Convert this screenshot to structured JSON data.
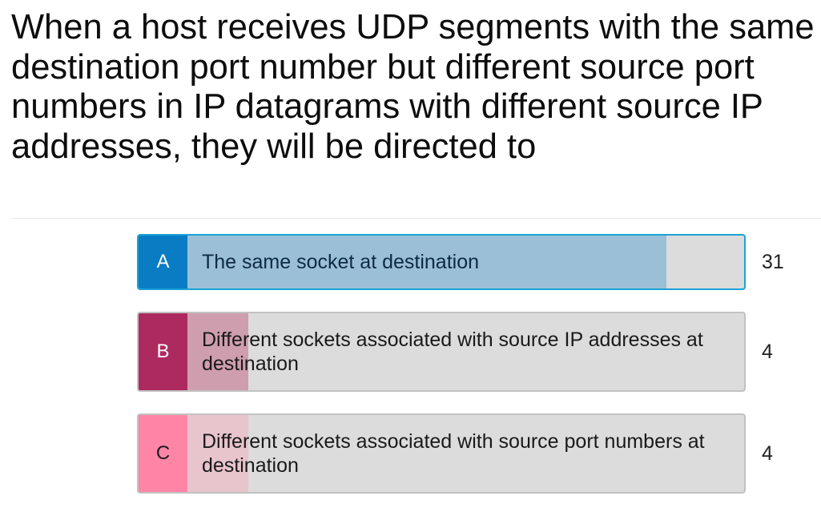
{
  "question": "When a host receives UDP segments with the same destination port number but different source port numbers in IP datagrams with different source IP addresses, they will be directed to",
  "options": [
    {
      "letter": "A",
      "text": "The same socket at destination",
      "count": "31",
      "share": 0.86,
      "letter_color": "#0a7cc4",
      "fill_color": "#9bbfd6",
      "correct": true
    },
    {
      "letter": "B",
      "text": "Different sockets associated with source IP addresses at destination",
      "count": "4",
      "share": 0.11,
      "letter_color": "#ad2a5f",
      "fill_color": "#cf9eae",
      "correct": false
    },
    {
      "letter": "C",
      "text": "Different sockets associated with source port numbers at destination",
      "count": "4",
      "share": 0.11,
      "letter_color": "#ff85a6",
      "fill_color": "#e8c4cd",
      "correct": false
    }
  ]
}
